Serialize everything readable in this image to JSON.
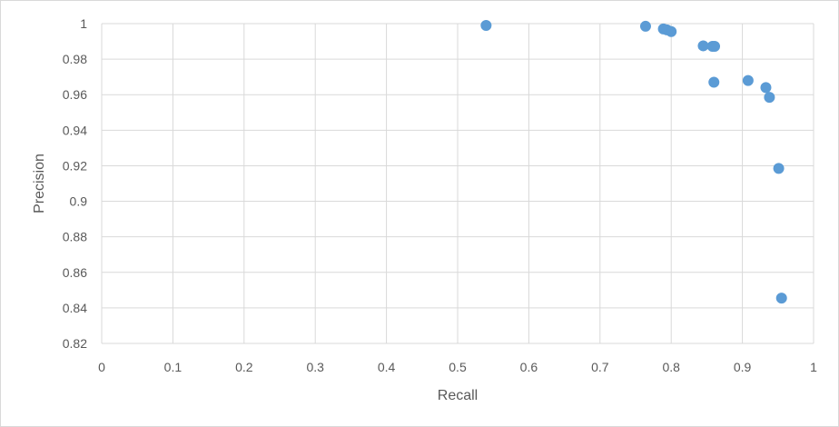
{
  "chart_data": {
    "type": "scatter",
    "title": "",
    "xlabel": "Recall",
    "ylabel": "Precision",
    "xlim": [
      0,
      1
    ],
    "ylim": [
      0.82,
      1
    ],
    "xticks": [
      0,
      0.1,
      0.2,
      0.3,
      0.4,
      0.5,
      0.6,
      0.7,
      0.8,
      0.9,
      1
    ],
    "xtick_labels": [
      "0",
      "0.1",
      "0.2",
      "0.3",
      "0.4",
      "0.5",
      "0.6",
      "0.7",
      "0.8",
      "0.9",
      "1"
    ],
    "yticks": [
      0.82,
      0.84,
      0.86,
      0.88,
      0.9,
      0.92,
      0.94,
      0.96,
      0.98,
      1
    ],
    "ytick_labels": [
      "0.82",
      "0.84",
      "0.86",
      "0.88",
      "0.9",
      "0.92",
      "0.94",
      "0.96",
      "0.98",
      "1"
    ],
    "grid": true,
    "marker_color": "#5b9bd5",
    "series": [
      {
        "name": "Precision",
        "points": [
          {
            "x": 0.54,
            "y": 0.999
          },
          {
            "x": 0.764,
            "y": 0.9985
          },
          {
            "x": 0.789,
            "y": 0.997
          },
          {
            "x": 0.794,
            "y": 0.9965
          },
          {
            "x": 0.8,
            "y": 0.9955
          },
          {
            "x": 0.845,
            "y": 0.9875
          },
          {
            "x": 0.858,
            "y": 0.9872
          },
          {
            "x": 0.861,
            "y": 0.9872
          },
          {
            "x": 0.86,
            "y": 0.967
          },
          {
            "x": 0.908,
            "y": 0.968
          },
          {
            "x": 0.933,
            "y": 0.964
          },
          {
            "x": 0.938,
            "y": 0.9585
          },
          {
            "x": 0.951,
            "y": 0.9185
          },
          {
            "x": 0.955,
            "y": 0.8455
          }
        ]
      }
    ]
  }
}
